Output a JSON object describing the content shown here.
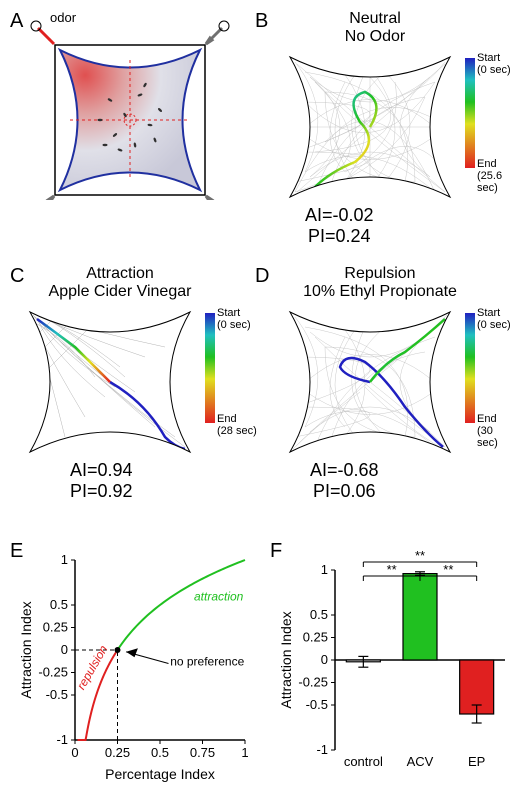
{
  "panelA": {
    "label": "A",
    "odor_label": "odor",
    "odor_color": "#e02020",
    "control_arrow_color": "#707070",
    "arena_fill_gradient": {
      "odor_corner": "#e05050",
      "opposite": "#d0d0e0"
    },
    "lobe_outline": "#2030a0",
    "fly_color": "#303030"
  },
  "panelB": {
    "label": "B",
    "title_line1": "Neutral",
    "title_line2": "No Odor",
    "AI": "AI=-0.02",
    "PI": "PI=0.24",
    "track_color": "#b0b0b0",
    "colorbar": {
      "start_label": "Start",
      "start_time": "(0 sec)",
      "end_label": "End",
      "end_time": "(25.6 sec)",
      "gradient": [
        "#2020c0",
        "#20c0c0",
        "#20c020",
        "#e0e020",
        "#e08020",
        "#e02020"
      ]
    }
  },
  "panelC": {
    "label": "C",
    "title_line1": "Attraction",
    "title_line2": "Apple Cider Vinegar",
    "AI": "AI=0.94",
    "PI": "PI=0.92",
    "track_color": "#a0a0a0",
    "colorbar": {
      "start_label": "Start",
      "start_time": "(0 sec)",
      "end_label": "End",
      "end_time": "(28 sec)",
      "gradient": [
        "#2020c0",
        "#20c0c0",
        "#20c020",
        "#e0e020",
        "#e08020",
        "#e02020"
      ]
    }
  },
  "panelD": {
    "label": "D",
    "title_line1": "Repulsion",
    "title_line2": "10% Ethyl Propionate",
    "AI": "AI=-0.68",
    "PI": "PI=0.06",
    "track_color": "#b0b0b0",
    "colorbar": {
      "start_label": "Start",
      "start_time": "(0 sec)",
      "end_label": "End",
      "end_time": "(30 sec)",
      "gradient": [
        "#2020c0",
        "#20c0c0",
        "#20c020",
        "#e0e020",
        "#e08020",
        "#e02020"
      ]
    }
  },
  "panelE": {
    "label": "E",
    "xlabel": "Percentage Index",
    "ylabel": "Attraction Index",
    "xlim": [
      0,
      1
    ],
    "ylim": [
      -1,
      1
    ],
    "xticks": [
      0,
      0.25,
      0.5,
      0.75,
      1
    ],
    "yticks": [
      -1,
      -0.5,
      -0.25,
      0,
      0.25,
      0.5,
      1
    ],
    "ytick_labels": [
      "-1",
      "-0.5",
      "-0.25",
      "0",
      "0.25",
      "0.5",
      "1"
    ],
    "xtick_labels": [
      "0",
      "0.25",
      "0.5",
      "0.75",
      "1"
    ],
    "attraction_curve_color": "#20c020",
    "repulsion_curve_color": "#e02020",
    "attraction_label": "attraction",
    "repulsion_label": "repulsion",
    "no_pref_label": "no preference",
    "no_pref_x": 0.25,
    "no_pref_y": 0,
    "font_size": 13,
    "axis_color": "#000000",
    "background_color": "#ffffff"
  },
  "panelF": {
    "label": "F",
    "ylabel": "Attraction Index",
    "ylim": [
      -1,
      1
    ],
    "yticks": [
      -1,
      -0.5,
      -0.25,
      0,
      0.25,
      0.5,
      1
    ],
    "ytick_labels": [
      "-1",
      "-0.5",
      "-0.25",
      "0",
      "0.25",
      "0.5",
      "1"
    ],
    "categories": [
      "control",
      "ACV",
      "EP"
    ],
    "values": [
      -0.02,
      0.96,
      -0.6
    ],
    "errors": [
      0.06,
      0.02,
      0.1
    ],
    "bar_colors": [
      "#ffffff",
      "#20c020",
      "#e02020"
    ],
    "bar_border": "#000000",
    "sig_label": "**",
    "font_size": 13,
    "axis_color": "#000000",
    "background_color": "#ffffff",
    "bar_width": 0.6
  }
}
